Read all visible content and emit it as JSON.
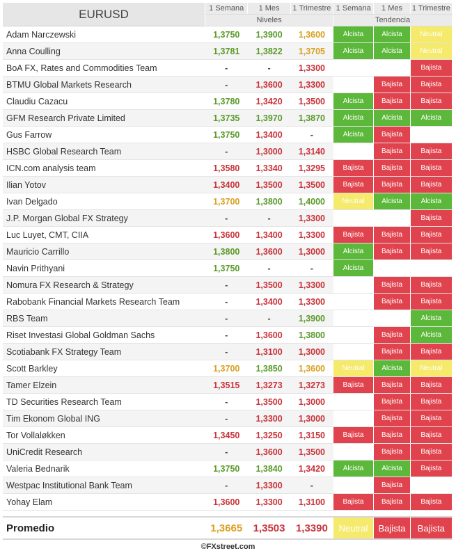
{
  "table": {
    "title": "EURUSD",
    "headers": [
      "1 Semana",
      "1 Mes",
      "1 Trimestre",
      "1 Semana",
      "1 Mes",
      "1 Trimestre"
    ],
    "group_levels": "Niveles",
    "group_trend": "Tendencia",
    "rows": [
      {
        "name": "Adam Narczewski",
        "levels": [
          "1,3750",
          "1,3900",
          "1,3600"
        ],
        "lc": [
          "g",
          "g",
          "y"
        ],
        "trend": [
          "Alcista",
          "Alcista",
          "Neutral"
        ]
      },
      {
        "name": "Anna Coulling",
        "levels": [
          "1,3781",
          "1,3822",
          "1,3705"
        ],
        "lc": [
          "g",
          "g",
          "y"
        ],
        "trend": [
          "Alcista",
          "Alcista",
          "Neutral"
        ]
      },
      {
        "name": "BoA FX, Rates and Commodities Team",
        "levels": [
          "-",
          "-",
          "1,3300"
        ],
        "lc": [
          "n",
          "n",
          "r"
        ],
        "trend": [
          "-",
          "-",
          "Bajista"
        ]
      },
      {
        "name": "BTMU Global Markets Research",
        "levels": [
          "-",
          "1,3600",
          "1,3300"
        ],
        "lc": [
          "n",
          "r",
          "r"
        ],
        "trend": [
          "-",
          "Bajista",
          "Bajista"
        ]
      },
      {
        "name": "Claudiu Cazacu",
        "levels": [
          "1,3780",
          "1,3420",
          "1,3500"
        ],
        "lc": [
          "g",
          "r",
          "r"
        ],
        "trend": [
          "Alcista",
          "Bajista",
          "Bajista"
        ]
      },
      {
        "name": "GFM Research Private Limited",
        "levels": [
          "1,3735",
          "1,3970",
          "1,3870"
        ],
        "lc": [
          "g",
          "g",
          "g"
        ],
        "trend": [
          "Alcista",
          "Alcista",
          "Alcista"
        ]
      },
      {
        "name": "Gus Farrow",
        "levels": [
          "1,3750",
          "1,3400",
          "-"
        ],
        "lc": [
          "g",
          "r",
          "n"
        ],
        "trend": [
          "Alcista",
          "Bajista",
          "-"
        ]
      },
      {
        "name": "HSBC Global Research Team",
        "levels": [
          "-",
          "1,3000",
          "1,3140"
        ],
        "lc": [
          "n",
          "r",
          "r"
        ],
        "trend": [
          "-",
          "Bajista",
          "Bajista"
        ]
      },
      {
        "name": "ICN.com analysis team",
        "levels": [
          "1,3580",
          "1,3340",
          "1,3295"
        ],
        "lc": [
          "r",
          "r",
          "r"
        ],
        "trend": [
          "Bajista",
          "Bajista",
          "Bajista"
        ]
      },
      {
        "name": "Ilian Yotov",
        "levels": [
          "1,3400",
          "1,3500",
          "1,3500"
        ],
        "lc": [
          "r",
          "r",
          "r"
        ],
        "trend": [
          "Bajista",
          "Bajista",
          "Bajista"
        ]
      },
      {
        "name": "Ivan Delgado",
        "levels": [
          "1,3700",
          "1,3800",
          "1,4000"
        ],
        "lc": [
          "y",
          "g",
          "g"
        ],
        "trend": [
          "Neutral",
          "Alcista",
          "Alcista"
        ]
      },
      {
        "name": "J.P. Morgan Global FX Strategy",
        "levels": [
          "-",
          "-",
          "1,3300"
        ],
        "lc": [
          "n",
          "n",
          "r"
        ],
        "trend": [
          "-",
          "-",
          "Bajista"
        ]
      },
      {
        "name": "Luc Luyet, CMT, CIIA",
        "levels": [
          "1,3600",
          "1,3400",
          "1,3300"
        ],
        "lc": [
          "r",
          "r",
          "r"
        ],
        "trend": [
          "Bajista",
          "Bajista",
          "Bajista"
        ]
      },
      {
        "name": "Mauricio Carrillo",
        "levels": [
          "1,3800",
          "1,3600",
          "1,3000"
        ],
        "lc": [
          "g",
          "r",
          "r"
        ],
        "trend": [
          "Alcista",
          "Bajista",
          "Bajista"
        ]
      },
      {
        "name": "Navin Prithyani",
        "levels": [
          "1,3750",
          "-",
          "-"
        ],
        "lc": [
          "g",
          "n",
          "n"
        ],
        "trend": [
          "Alcista",
          "-",
          "-"
        ]
      },
      {
        "name": "Nomura FX Research & Strategy",
        "levels": [
          "-",
          "1,3500",
          "1,3300"
        ],
        "lc": [
          "n",
          "r",
          "r"
        ],
        "trend": [
          "-",
          "Bajista",
          "Bajista"
        ]
      },
      {
        "name": "Rabobank Financial Markets Research Team",
        "levels": [
          "-",
          "1,3400",
          "1,3300"
        ],
        "lc": [
          "n",
          "r",
          "r"
        ],
        "trend": [
          "-",
          "Bajista",
          "Bajista"
        ]
      },
      {
        "name": "RBS Team",
        "levels": [
          "-",
          "-",
          "1,3900"
        ],
        "lc": [
          "n",
          "n",
          "g"
        ],
        "trend": [
          "-",
          "-",
          "Alcista"
        ]
      },
      {
        "name": "Riset Investasi Global Goldman Sachs",
        "levels": [
          "-",
          "1,3600",
          "1,3800"
        ],
        "lc": [
          "n",
          "r",
          "g"
        ],
        "trend": [
          "-",
          "Bajista",
          "Alcista"
        ]
      },
      {
        "name": "Scotiabank FX Strategy Team",
        "levels": [
          "-",
          "1,3100",
          "1,3000"
        ],
        "lc": [
          "n",
          "r",
          "r"
        ],
        "trend": [
          "-",
          "Bajista",
          "Bajista"
        ]
      },
      {
        "name": "Scott Barkley",
        "levels": [
          "1,3700",
          "1,3850",
          "1,3600"
        ],
        "lc": [
          "y",
          "g",
          "y"
        ],
        "trend": [
          "Neutral",
          "Alcista",
          "Neutral"
        ]
      },
      {
        "name": "Tamer Elzein",
        "levels": [
          "1,3515",
          "1,3273",
          "1,3273"
        ],
        "lc": [
          "r",
          "r",
          "r"
        ],
        "trend": [
          "Bajista",
          "Bajista",
          "Bajista"
        ]
      },
      {
        "name": "TD Securities Research Team",
        "levels": [
          "-",
          "1,3500",
          "1,3000"
        ],
        "lc": [
          "n",
          "r",
          "r"
        ],
        "trend": [
          "-",
          "Bajista",
          "Bajista"
        ]
      },
      {
        "name": "Tim Ekonom Global ING",
        "levels": [
          "-",
          "1,3300",
          "1,3000"
        ],
        "lc": [
          "n",
          "r",
          "r"
        ],
        "trend": [
          "-",
          "Bajista",
          "Bajista"
        ]
      },
      {
        "name": "Tor Vollaløkken",
        "levels": [
          "1,3450",
          "1,3250",
          "1,3150"
        ],
        "lc": [
          "r",
          "r",
          "r"
        ],
        "trend": [
          "Bajista",
          "Bajista",
          "Bajista"
        ]
      },
      {
        "name": "UniCredit Research",
        "levels": [
          "-",
          "1,3600",
          "1,3500"
        ],
        "lc": [
          "n",
          "r",
          "r"
        ],
        "trend": [
          "-",
          "Bajista",
          "Bajista"
        ]
      },
      {
        "name": "Valeria Bednarik",
        "levels": [
          "1,3750",
          "1,3840",
          "1,3420"
        ],
        "lc": [
          "g",
          "g",
          "r"
        ],
        "trend": [
          "Alcista",
          "Alcista",
          "Bajista"
        ]
      },
      {
        "name": "Westpac Institutional Bank Team",
        "levels": [
          "-",
          "1,3300",
          "-"
        ],
        "lc": [
          "n",
          "r",
          "n"
        ],
        "trend": [
          "-",
          "Bajista",
          "-"
        ]
      },
      {
        "name": "Yohay Elam",
        "levels": [
          "1,3600",
          "1,3300",
          "1,3100"
        ],
        "lc": [
          "r",
          "r",
          "r"
        ],
        "trend": [
          "Bajista",
          "Bajista",
          "Bajista"
        ]
      }
    ],
    "average": {
      "label": "Promedio",
      "levels": [
        "1,3665",
        "1,3503",
        "1,3390"
      ],
      "lc": [
        "y",
        "r",
        "r"
      ],
      "trend": [
        "Neutral",
        "Bajista",
        "Bajista"
      ]
    }
  },
  "footer": "©FXstreet.com",
  "colors": {
    "alcista": "#5cb83a",
    "bajista": "#e0434d",
    "neutral": "#f5ea6c"
  }
}
